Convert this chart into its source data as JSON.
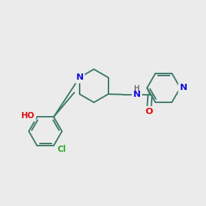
{
  "bg_color": "#ebebeb",
  "bond_color": "#3d7a6a",
  "bond_width": 1.5,
  "atom_colors": {
    "N": "#1010dd",
    "O": "#dd1010",
    "Cl": "#22aa22",
    "H": "#777777"
  },
  "font_size": 8.5,
  "fig_size": [
    3.0,
    3.0
  ],
  "dpi": 100
}
